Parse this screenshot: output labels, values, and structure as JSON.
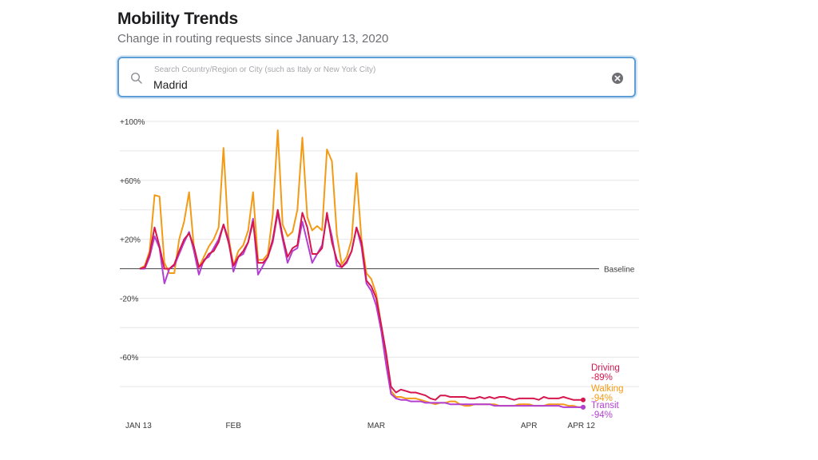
{
  "header": {
    "title": "Mobility Trends",
    "subtitle": "Change in routing requests since January 13, 2020"
  },
  "search": {
    "placeholder": "Search Country/Region or City (such as Italy or New York City)",
    "value": "Madrid"
  },
  "chart_data": {
    "type": "line",
    "y_unit": "% change",
    "ylim": [
      -100,
      100
    ],
    "y_ticks": [
      {
        "value": 100,
        "label": "+100%"
      },
      {
        "value": 60,
        "label": "+60%"
      },
      {
        "value": 20,
        "label": "+20%"
      },
      {
        "value": -20,
        "label": "-20%"
      },
      {
        "value": -60,
        "label": "-60%"
      }
    ],
    "baseline_label": "Baseline",
    "x_start": "2020-01-13",
    "x_end": "2020-04-12",
    "x_ticks": [
      {
        "date": "2020-01-13",
        "label": "JAN 13"
      },
      {
        "date": "2020-02-01",
        "label": "FEB"
      },
      {
        "date": "2020-03-01",
        "label": "MAR"
      },
      {
        "date": "2020-04-01",
        "label": "APR"
      },
      {
        "date": "2020-04-12",
        "label": "APR 12"
      }
    ],
    "grid": true,
    "series": [
      {
        "name": "Walking",
        "color": "#f39a16",
        "end_value": -94,
        "end_label": "-94%",
        "values": [
          0,
          2,
          12,
          50,
          49,
          4,
          -3,
          -3,
          20,
          32,
          52,
          14,
          1,
          8,
          15,
          20,
          28,
          82,
          22,
          2,
          12,
          16,
          26,
          52,
          6,
          6,
          10,
          37,
          94,
          30,
          22,
          25,
          40,
          89,
          35,
          26,
          29,
          26,
          81,
          73,
          23,
          3,
          8,
          20,
          65,
          20,
          -3,
          -7,
          -17,
          -38,
          -60,
          -83,
          -87,
          -87,
          -88,
          -88,
          -88,
          -89,
          -90,
          -91,
          -92,
          -91,
          -91,
          -90,
          -90,
          -92,
          -93,
          -93,
          -92,
          -92,
          -92,
          -92,
          -92,
          -93,
          -93,
          -93,
          -93,
          -92,
          -92,
          -92,
          -93,
          -93,
          -93,
          -92,
          -92,
          -92,
          -92,
          -93,
          -93,
          -94,
          -94
        ]
      },
      {
        "name": "Driving",
        "color": "#d6174e",
        "end_value": -89,
        "end_label": "-89%",
        "values": [
          0,
          1,
          10,
          28,
          15,
          0,
          0,
          3,
          12,
          20,
          24,
          15,
          1,
          5,
          10,
          12,
          18,
          30,
          18,
          2,
          8,
          12,
          18,
          32,
          4,
          4,
          8,
          20,
          40,
          22,
          8,
          14,
          16,
          38,
          28,
          10,
          10,
          14,
          38,
          18,
          6,
          1,
          5,
          12,
          28,
          18,
          -8,
          -12,
          -20,
          -38,
          -57,
          -80,
          -84,
          -82,
          -83,
          -84,
          -84,
          -85,
          -86,
          -88,
          -89,
          -86,
          -86,
          -87,
          -87,
          -87,
          -87,
          -88,
          -88,
          -87,
          -88,
          -87,
          -88,
          -87,
          -87,
          -88,
          -89,
          -88,
          -88,
          -88,
          -88,
          -89,
          -87,
          -88,
          -88,
          -88,
          -87,
          -88,
          -89,
          -89,
          -89
        ]
      },
      {
        "name": "Transit",
        "color": "#b33fd2",
        "end_value": -94,
        "end_label": "-94%",
        "values": [
          0,
          0,
          8,
          22,
          14,
          -10,
          0,
          2,
          10,
          18,
          25,
          12,
          -4,
          6,
          8,
          14,
          20,
          30,
          20,
          -2,
          8,
          10,
          18,
          34,
          -4,
          2,
          8,
          18,
          38,
          20,
          4,
          12,
          14,
          32,
          18,
          4,
          10,
          16,
          36,
          22,
          2,
          1,
          4,
          12,
          28,
          15,
          -10,
          -15,
          -25,
          -42,
          -65,
          -85,
          -88,
          -89,
          -89,
          -90,
          -90,
          -90,
          -91,
          -91,
          -91,
          -91,
          -91,
          -92,
          -92,
          -92,
          -92,
          -92,
          -92,
          -92,
          -92,
          -92,
          -93,
          -93,
          -93,
          -93,
          -93,
          -93,
          -93,
          -93,
          -93,
          -93,
          -93,
          -93,
          -93,
          -93,
          -94,
          -94,
          -94,
          -94,
          -94
        ]
      }
    ]
  }
}
